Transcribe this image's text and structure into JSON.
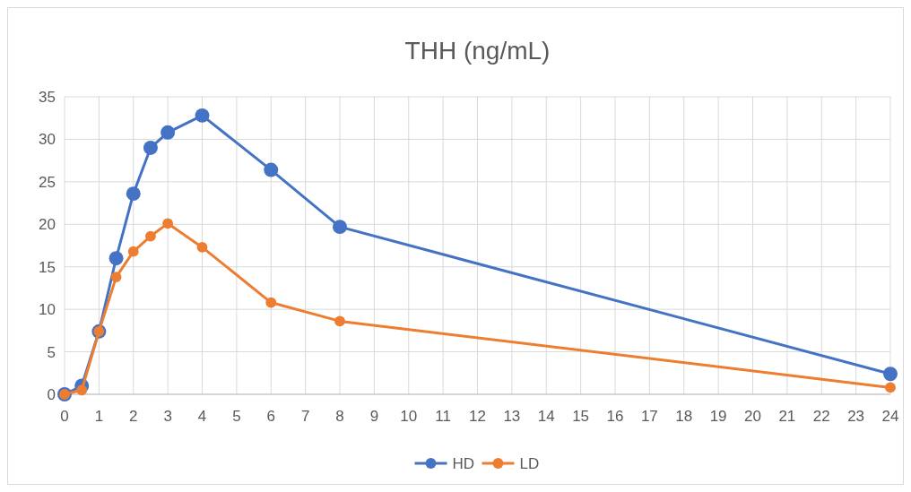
{
  "chart_data": {
    "type": "line",
    "title": "THH (ng/mL)",
    "x": [
      0,
      0.5,
      1,
      1.5,
      2,
      2.5,
      3,
      4,
      6,
      8,
      24
    ],
    "series": [
      {
        "name": "HD",
        "color": "#4472c4",
        "values": [
          0,
          1.0,
          7.4,
          16.0,
          23.6,
          29.0,
          30.8,
          32.8,
          26.4,
          19.7,
          2.4
        ]
      },
      {
        "name": "LD",
        "color": "#ed7d31",
        "values": [
          0,
          0.5,
          7.4,
          13.8,
          16.8,
          18.6,
          20.1,
          17.3,
          10.8,
          8.6,
          0.8
        ]
      }
    ],
    "xlim": [
      0,
      24
    ],
    "xticks": [
      0,
      1,
      2,
      3,
      4,
      5,
      6,
      7,
      8,
      9,
      10,
      11,
      12,
      13,
      14,
      15,
      16,
      17,
      18,
      19,
      20,
      21,
      22,
      23,
      24
    ],
    "ylim": [
      0,
      35
    ],
    "yticks": [
      0,
      5,
      10,
      15,
      20,
      25,
      30,
      35
    ],
    "grid": true,
    "legend": "bottom",
    "marker": "circle",
    "line_style": "solid"
  }
}
